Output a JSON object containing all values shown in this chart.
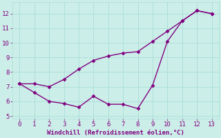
{
  "x": [
    0,
    1,
    2,
    3,
    4,
    5,
    6,
    7,
    8,
    9,
    10,
    11,
    12,
    13
  ],
  "line1": [
    7.2,
    7.2,
    7.0,
    7.5,
    8.2,
    8.8,
    9.1,
    9.3,
    9.4,
    10.1,
    10.8,
    11.5,
    12.2,
    12.0
  ],
  "line2": [
    7.2,
    6.6,
    6.0,
    5.85,
    5.6,
    6.35,
    5.8,
    5.8,
    5.5,
    7.1,
    10.1,
    11.5,
    12.2,
    12.0
  ],
  "line_color": "#800080",
  "marker": "D",
  "markersize": 2.5,
  "xlabel": "Windchill (Refroidissement éolien,°C)",
  "xlabel_color": "#800080",
  "xlim": [
    -0.5,
    13.5
  ],
  "ylim": [
    4.8,
    12.8
  ],
  "yticks": [
    5,
    6,
    7,
    8,
    9,
    10,
    11,
    12
  ],
  "xticks": [
    0,
    1,
    2,
    3,
    4,
    5,
    6,
    7,
    8,
    9,
    10,
    11,
    12,
    13
  ],
  "bg_color": "#cceee8",
  "grid_color": "#aaddd8",
  "tick_color": "#800080",
  "label_fontsize": 6.5,
  "tick_fontsize": 6.5,
  "linewidth": 1.0
}
